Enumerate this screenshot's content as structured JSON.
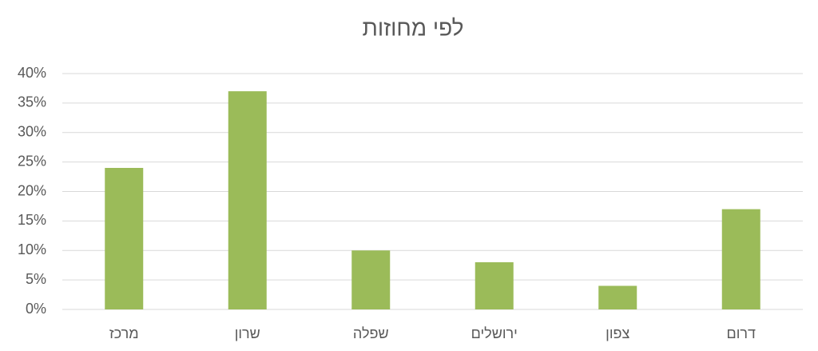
{
  "chart_data": {
    "type": "bar",
    "title": "לפי מחוזות",
    "categories": [
      "מרכז",
      "שרון",
      "שפלה",
      "ירושלים",
      "צפון",
      "דרום"
    ],
    "values": [
      24,
      37,
      10,
      8,
      4,
      17
    ],
    "color": "#9bbb59",
    "ylim": [
      0,
      40
    ],
    "yticks": [
      {
        "value": 0,
        "label": "0%"
      },
      {
        "value": 5,
        "label": "5%"
      },
      {
        "value": 10,
        "label": "10%"
      },
      {
        "value": 15,
        "label": "15%"
      },
      {
        "value": 20,
        "label": "20%"
      },
      {
        "value": 25,
        "label": "25%"
      },
      {
        "value": 30,
        "label": "30%"
      },
      {
        "value": 35,
        "label": "35%"
      },
      {
        "value": 40,
        "label": "40%"
      }
    ],
    "grid": true
  }
}
